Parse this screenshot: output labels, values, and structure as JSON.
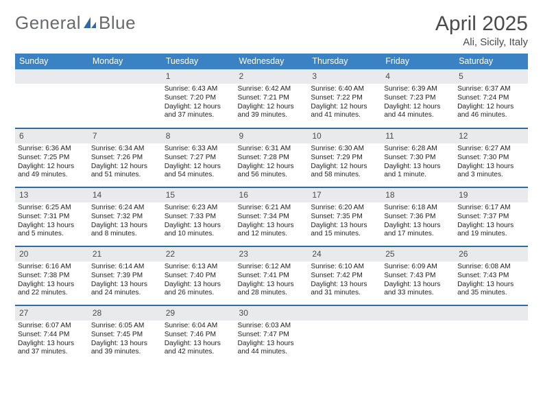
{
  "brand": {
    "part1": "General",
    "part2": "Blue"
  },
  "colors": {
    "header_bg": "#3b82c4",
    "header_text": "#ffffff",
    "row_border": "#2f6aa3",
    "daynum_bg": "#e9eaeb",
    "text": "#222222",
    "brand_gray": "#666a6e",
    "brand_blue": "#2f6aa3"
  },
  "typography": {
    "title_fontsize": 30,
    "location_fontsize": 15,
    "dayhead_fontsize": 12.5,
    "cell_fontsize": 10.2
  },
  "title": "April 2025",
  "location": "Ali, Sicily, Italy",
  "day_headers": [
    "Sunday",
    "Monday",
    "Tuesday",
    "Wednesday",
    "Thursday",
    "Friday",
    "Saturday"
  ],
  "weeks": [
    [
      null,
      null,
      {
        "n": "1",
        "sr": "6:43 AM",
        "ss": "7:20 PM",
        "dl": "12 hours and 37 minutes."
      },
      {
        "n": "2",
        "sr": "6:42 AM",
        "ss": "7:21 PM",
        "dl": "12 hours and 39 minutes."
      },
      {
        "n": "3",
        "sr": "6:40 AM",
        "ss": "7:22 PM",
        "dl": "12 hours and 41 minutes."
      },
      {
        "n": "4",
        "sr": "6:39 AM",
        "ss": "7:23 PM",
        "dl": "12 hours and 44 minutes."
      },
      {
        "n": "5",
        "sr": "6:37 AM",
        "ss": "7:24 PM",
        "dl": "12 hours and 46 minutes."
      }
    ],
    [
      {
        "n": "6",
        "sr": "6:36 AM",
        "ss": "7:25 PM",
        "dl": "12 hours and 49 minutes."
      },
      {
        "n": "7",
        "sr": "6:34 AM",
        "ss": "7:26 PM",
        "dl": "12 hours and 51 minutes."
      },
      {
        "n": "8",
        "sr": "6:33 AM",
        "ss": "7:27 PM",
        "dl": "12 hours and 54 minutes."
      },
      {
        "n": "9",
        "sr": "6:31 AM",
        "ss": "7:28 PM",
        "dl": "12 hours and 56 minutes."
      },
      {
        "n": "10",
        "sr": "6:30 AM",
        "ss": "7:29 PM",
        "dl": "12 hours and 58 minutes."
      },
      {
        "n": "11",
        "sr": "6:28 AM",
        "ss": "7:30 PM",
        "dl": "13 hours and 1 minute."
      },
      {
        "n": "12",
        "sr": "6:27 AM",
        "ss": "7:30 PM",
        "dl": "13 hours and 3 minutes."
      }
    ],
    [
      {
        "n": "13",
        "sr": "6:25 AM",
        "ss": "7:31 PM",
        "dl": "13 hours and 5 minutes."
      },
      {
        "n": "14",
        "sr": "6:24 AM",
        "ss": "7:32 PM",
        "dl": "13 hours and 8 minutes."
      },
      {
        "n": "15",
        "sr": "6:23 AM",
        "ss": "7:33 PM",
        "dl": "13 hours and 10 minutes."
      },
      {
        "n": "16",
        "sr": "6:21 AM",
        "ss": "7:34 PM",
        "dl": "13 hours and 12 minutes."
      },
      {
        "n": "17",
        "sr": "6:20 AM",
        "ss": "7:35 PM",
        "dl": "13 hours and 15 minutes."
      },
      {
        "n": "18",
        "sr": "6:18 AM",
        "ss": "7:36 PM",
        "dl": "13 hours and 17 minutes."
      },
      {
        "n": "19",
        "sr": "6:17 AM",
        "ss": "7:37 PM",
        "dl": "13 hours and 19 minutes."
      }
    ],
    [
      {
        "n": "20",
        "sr": "6:16 AM",
        "ss": "7:38 PM",
        "dl": "13 hours and 22 minutes."
      },
      {
        "n": "21",
        "sr": "6:14 AM",
        "ss": "7:39 PM",
        "dl": "13 hours and 24 minutes."
      },
      {
        "n": "22",
        "sr": "6:13 AM",
        "ss": "7:40 PM",
        "dl": "13 hours and 26 minutes."
      },
      {
        "n": "23",
        "sr": "6:12 AM",
        "ss": "7:41 PM",
        "dl": "13 hours and 28 minutes."
      },
      {
        "n": "24",
        "sr": "6:10 AM",
        "ss": "7:42 PM",
        "dl": "13 hours and 31 minutes."
      },
      {
        "n": "25",
        "sr": "6:09 AM",
        "ss": "7:43 PM",
        "dl": "13 hours and 33 minutes."
      },
      {
        "n": "26",
        "sr": "6:08 AM",
        "ss": "7:43 PM",
        "dl": "13 hours and 35 minutes."
      }
    ],
    [
      {
        "n": "27",
        "sr": "6:07 AM",
        "ss": "7:44 PM",
        "dl": "13 hours and 37 minutes."
      },
      {
        "n": "28",
        "sr": "6:05 AM",
        "ss": "7:45 PM",
        "dl": "13 hours and 39 minutes."
      },
      {
        "n": "29",
        "sr": "6:04 AM",
        "ss": "7:46 PM",
        "dl": "13 hours and 42 minutes."
      },
      {
        "n": "30",
        "sr": "6:03 AM",
        "ss": "7:47 PM",
        "dl": "13 hours and 44 minutes."
      },
      null,
      null,
      null
    ]
  ],
  "labels": {
    "sunrise": "Sunrise: ",
    "sunset": "Sunset: ",
    "daylight": "Daylight: "
  }
}
